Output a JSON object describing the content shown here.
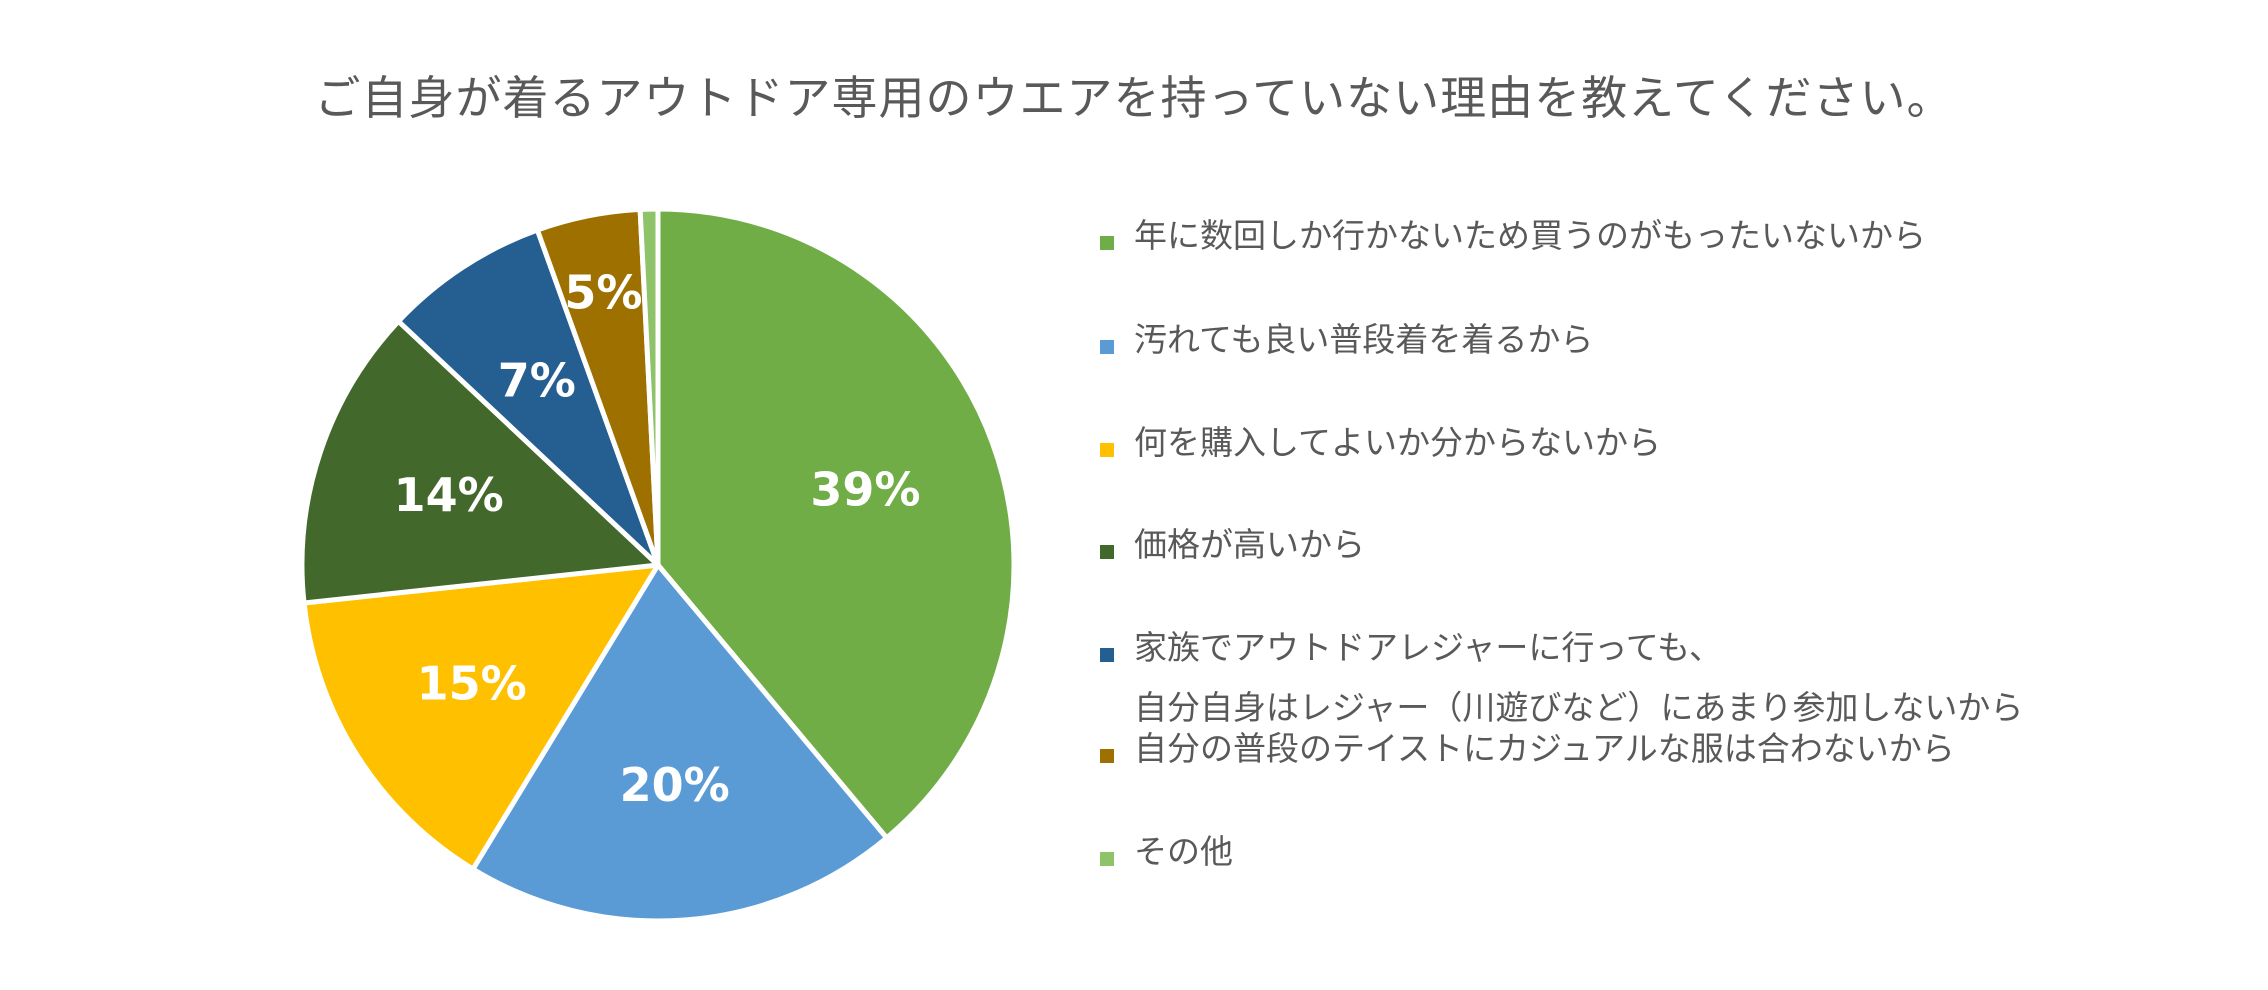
{
  "chart_data": {
    "type": "pie",
    "title": "ご自身が着るアウトドア専用のウエアを持っていない理由を教えてください。",
    "categories": [
      "年に数回しか行かないため買うのがもったいないから",
      "汚れても良い普段着を着るから",
      "何を購入してよいか分からないから",
      "価格が高いから",
      "家族でアウトドアレジャーに行っても、自分自身はレジャー（川遊びなど）にあまり参加しないから",
      "自分の普段のテイストにカジュアルな服は合わないから",
      "その他"
    ],
    "values": [
      38.9,
      19.8,
      14.6,
      13.7,
      7.5,
      4.7,
      0.8
    ],
    "data_labels": [
      "39%",
      "20%",
      "15%",
      "14%",
      "7%",
      "5%",
      ""
    ],
    "colors": [
      "#70AD47",
      "#5B9BD5",
      "#FFC000",
      "#43682B",
      "#255E91",
      "#9E7000",
      "#8FC36A"
    ],
    "start_angle": "12 o'clock, clockwise",
    "legend_position": "right"
  },
  "title": "ご自身が着るアウトドア専用のウエアを持っていない理由を教えてください。",
  "legend": [
    {
      "lines": [
        "年に数回しか行かないため買うのがもったいないから"
      ],
      "color": "#70AD47"
    },
    {
      "lines": [
        "汚れても良い普段着を着るから"
      ],
      "color": "#5B9BD5"
    },
    {
      "lines": [
        "何を購入してよいか分からないから"
      ],
      "color": "#FFC000"
    },
    {
      "lines": [
        "価格が高いから"
      ],
      "color": "#43682B"
    },
    {
      "lines": [
        "家族でアウトドアレジャーに行っても、",
        "自分自身はレジャー（川遊びなど）にあまり参加しないから"
      ],
      "color": "#255E91"
    },
    {
      "lines": [
        "自分の普段のテイストにカジュアルな服は合わないから"
      ],
      "color": "#9E7000"
    },
    {
      "lines": [
        "その他"
      ],
      "color": "#8FC36A"
    }
  ]
}
